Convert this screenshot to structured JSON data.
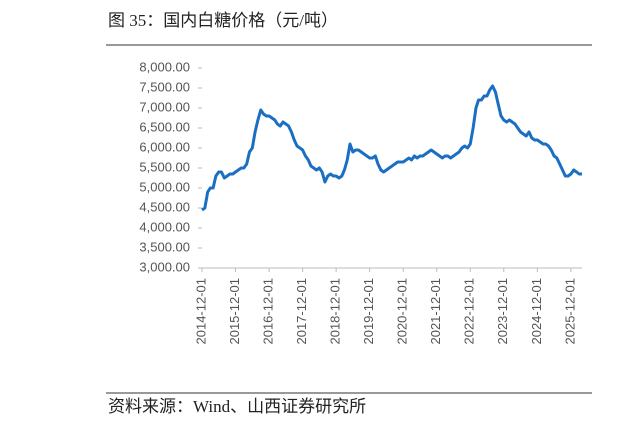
{
  "chart_data": {
    "type": "line",
    "title": "图 35：国内白糖价格（元/吨）",
    "source": "资料来源：Wind、山西证券研究所",
    "x": [
      "2014-12-01",
      "2015-01-01",
      "2015-02-01",
      "2015-03-01",
      "2015-04-01",
      "2015-05-01",
      "2015-06-01",
      "2015-07-01",
      "2015-08-01",
      "2015-09-01",
      "2015-10-01",
      "2015-11-01",
      "2015-12-01",
      "2016-01-01",
      "2016-02-01",
      "2016-03-01",
      "2016-04-01",
      "2016-05-01",
      "2016-06-01",
      "2016-07-01",
      "2016-08-01",
      "2016-09-01",
      "2016-10-01",
      "2016-11-01",
      "2016-12-01",
      "2017-01-01",
      "2017-02-01",
      "2017-03-01",
      "2017-04-01",
      "2017-05-01",
      "2017-06-01",
      "2017-07-01",
      "2017-08-01",
      "2017-09-01",
      "2017-10-01",
      "2017-11-01",
      "2017-12-01",
      "2018-01-01",
      "2018-02-01",
      "2018-03-01",
      "2018-04-01",
      "2018-05-01",
      "2018-06-01",
      "2018-07-01",
      "2018-08-01",
      "2018-09-01",
      "2018-10-01",
      "2018-11-01",
      "2018-12-01",
      "2019-01-01",
      "2019-02-01",
      "2019-03-01",
      "2019-04-01",
      "2019-05-01",
      "2019-06-01",
      "2019-07-01",
      "2019-08-01",
      "2019-09-01",
      "2019-10-01",
      "2019-11-01",
      "2019-12-01",
      "2020-01-01",
      "2020-02-01",
      "2020-03-01",
      "2020-04-01",
      "2020-05-01",
      "2020-06-01",
      "2020-07-01",
      "2020-08-01",
      "2020-09-01",
      "2020-10-01",
      "2020-11-01",
      "2020-12-01",
      "2021-01-01",
      "2021-02-01",
      "2021-03-01",
      "2021-04-01",
      "2021-05-01",
      "2021-06-01",
      "2021-07-01",
      "2021-08-01",
      "2021-09-01",
      "2021-10-01",
      "2021-11-01",
      "2021-12-01",
      "2022-01-01",
      "2022-02-01",
      "2022-03-01",
      "2022-04-01",
      "2022-05-01",
      "2022-06-01",
      "2022-07-01",
      "2022-08-01",
      "2022-09-01",
      "2022-10-01",
      "2022-11-01",
      "2022-12-01",
      "2023-01-01",
      "2023-02-01",
      "2023-03-01",
      "2023-04-01",
      "2023-05-01",
      "2023-06-01",
      "2023-07-01",
      "2023-08-01",
      "2023-09-01",
      "2023-10-01",
      "2023-11-01",
      "2023-12-01",
      "2024-01-01",
      "2024-02-01",
      "2024-03-01",
      "2024-04-01",
      "2024-05-01",
      "2024-06-01",
      "2024-07-01",
      "2024-08-01",
      "2024-09-01",
      "2024-10-01",
      "2024-11-01",
      "2024-12-01",
      "2025-01-01",
      "2025-02-01",
      "2025-03-01",
      "2025-04-01",
      "2025-05-01",
      "2025-06-01",
      "2025-07-01",
      "2025-08-01",
      "2025-09-01",
      "2025-10-01",
      "2025-11-01",
      "2025-12-01",
      "2026-01-01",
      "2026-02-01",
      "2026-03-01",
      "2026-04-01"
    ],
    "series": [
      {
        "color": "#1b6fc2",
        "values": [
          4450,
          4500,
          4900,
          5000,
          5000,
          5300,
          5400,
          5400,
          5250,
          5300,
          5350,
          5350,
          5400,
          5450,
          5500,
          5500,
          5600,
          5900,
          6000,
          6400,
          6700,
          6950,
          6850,
          6800,
          6800,
          6750,
          6700,
          6600,
          6550,
          6650,
          6600,
          6550,
          6400,
          6200,
          6050,
          6000,
          5950,
          5800,
          5700,
          5550,
          5500,
          5450,
          5500,
          5400,
          5150,
          5300,
          5350,
          5300,
          5300,
          5250,
          5300,
          5450,
          5700,
          6100,
          5900,
          5950,
          5950,
          5900,
          5850,
          5800,
          5750,
          5750,
          5800,
          5600,
          5450,
          5400,
          5450,
          5500,
          5550,
          5600,
          5650,
          5650,
          5650,
          5700,
          5750,
          5700,
          5800,
          5750,
          5800,
          5800,
          5850,
          5900,
          5950,
          5900,
          5850,
          5800,
          5750,
          5800,
          5800,
          5750,
          5800,
          5850,
          5900,
          6000,
          6050,
          6000,
          6100,
          6500,
          7000,
          7200,
          7200,
          7300,
          7300,
          7450,
          7550,
          7400,
          7100,
          6800,
          6700,
          6650,
          6700,
          6650,
          6600,
          6500,
          6400,
          6350,
          6300,
          6400,
          6250,
          6200,
          6200,
          6150,
          6100,
          6100,
          6050,
          5950,
          5800,
          5750,
          5600,
          5450,
          5300,
          5300,
          5350,
          5450,
          5400,
          5350,
          5350
        ]
      }
    ],
    "xlim": [
      "2014-12-01",
      "2026-04-01"
    ],
    "xticks": [
      "2014-12-01",
      "2015-12-01",
      "2016-12-01",
      "2017-12-01",
      "2018-12-01",
      "2019-12-01",
      "2020-12-01",
      "2021-12-01",
      "2022-12-01",
      "2023-12-01",
      "2024-12-01",
      "2025-12-01"
    ],
    "ylim": [
      3000,
      8000
    ],
    "yticks": [
      {
        "value": 3000,
        "label": "3,000.00"
      },
      {
        "value": 3500,
        "label": "3,500.00"
      },
      {
        "value": 4000,
        "label": "4,000.00"
      },
      {
        "value": 4500,
        "label": "4,500.00"
      },
      {
        "value": 5000,
        "label": "5,000.00"
      },
      {
        "value": 5500,
        "label": "5,500.00"
      },
      {
        "value": 6000,
        "label": "6,000.00"
      },
      {
        "value": 6500,
        "label": "6,500.00"
      },
      {
        "value": 7000,
        "label": "7,000.00"
      },
      {
        "value": 7500,
        "label": "7,500.00"
      },
      {
        "value": 8000,
        "label": "8,000.00"
      }
    ],
    "grid": false
  }
}
